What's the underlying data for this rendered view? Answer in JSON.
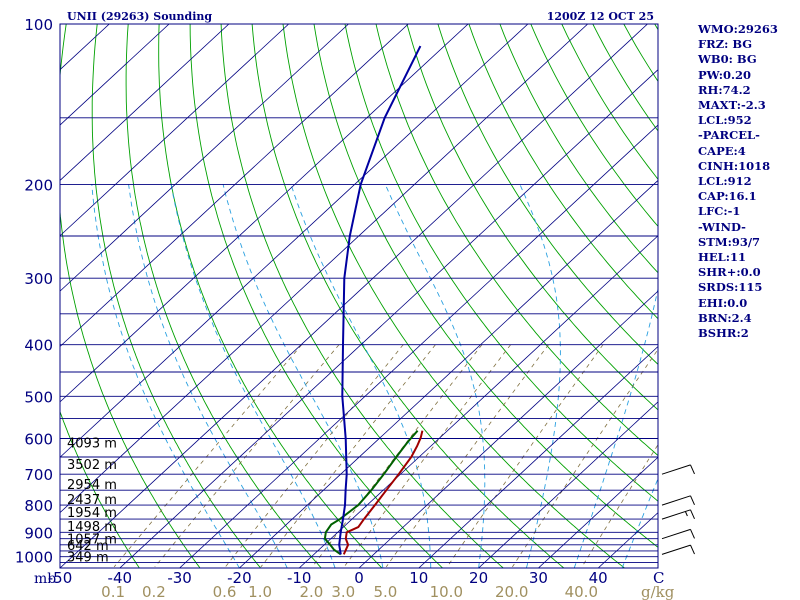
{
  "colors": {
    "border": "#000080",
    "isobar": "#000080",
    "isotherm": "#000080",
    "dry_adiabat": "#00A000",
    "moist_adiabat": "#2AA0E0",
    "mixing_ratio": "#807040",
    "temperature": "#A00000",
    "dewpoint": "#006000",
    "virtual_parcel": "#0000A0",
    "wind": "#000000",
    "label": "#000080",
    "mixing_label": "#A09060",
    "station": "#000080"
  },
  "header": {
    "station": "UNII (29263) Sounding",
    "time": "1200Z 12 OCT 25"
  },
  "side_panel": [
    "WMO:29263",
    "FRZ: BG",
    "WB0: BG",
    "PW:0.20",
    "RH:74.2",
    "MAXT:-2.3",
    "LCL:952",
    "-PARCEL-",
    "CAPE:4",
    "CINH:1018",
    "LCL:912",
    "CAP:16.1",
    "LFC:-1",
    "-WIND-",
    "STM:93/7",
    "HEL:11",
    "SHR+:0.0",
    "SRDS:115",
    "EHI:0.0",
    "BRN:2.4",
    "BSHR:2"
  ],
  "chart_data": {
    "type": "line",
    "title": "UNII (29263) Sounding",
    "subtitle": "1200Z 12 OCT 25",
    "xlabel": "",
    "ylabel": "mb",
    "xunit": "C",
    "mixing_unit": "g/kg",
    "xlim": [
      -50,
      50
    ],
    "ylim": [
      1050,
      100
    ],
    "pressure_labels": [
      100,
      200,
      300,
      400,
      500,
      600,
      700,
      800,
      900,
      1000
    ],
    "isobars": [
      100,
      150,
      200,
      250,
      300,
      350,
      400,
      450,
      500,
      550,
      600,
      650,
      700,
      750,
      800,
      850,
      900,
      925,
      950,
      975,
      1000,
      1025
    ],
    "temp_labels": [
      "-50",
      "-40",
      "-30",
      "-20",
      "-10",
      "0",
      "10",
      "20",
      "30",
      "40"
    ],
    "temp_label_values": [
      -50,
      -40,
      -30,
      -20,
      -10,
      0,
      10,
      20,
      30,
      40
    ],
    "mixing_labels": [
      "0.1",
      "0.2",
      "0.6",
      "1.0",
      "2.0",
      "3.0",
      "5.0",
      "10.0",
      "20.0",
      "40.0"
    ],
    "mixing_values": [
      0.1,
      0.2,
      0.6,
      1.0,
      2.0,
      3.0,
      5.0,
      10.0,
      20.0,
      40.0
    ],
    "height_labels": [
      {
        "p": 1000,
        "text": "349 m"
      },
      {
        "p": 950,
        "text": "642 m"
      },
      {
        "p": 925,
        "text": "1057 m"
      },
      {
        "p": 875,
        "text": "1498 m"
      },
      {
        "p": 825,
        "text": "1954 m"
      },
      {
        "p": 780,
        "text": "2437 m"
      },
      {
        "p": 730,
        "text": "2954 m"
      },
      {
        "p": 670,
        "text": "3502 m"
      },
      {
        "p": 610,
        "text": "4093 m"
      }
    ],
    "series": [
      {
        "name": "temperature",
        "points": [
          [
            990,
            -5.0
          ],
          [
            970,
            -5.5
          ],
          [
            950,
            -6.0
          ],
          [
            925,
            -7.5
          ],
          [
            900,
            -8.5
          ],
          [
            880,
            -7.5
          ],
          [
            850,
            -8.0
          ],
          [
            800,
            -8.7
          ],
          [
            750,
            -9.5
          ],
          [
            700,
            -10.3
          ],
          [
            650,
            -11.3
          ],
          [
            620,
            -12.3
          ],
          [
            598,
            -13.2
          ],
          [
            580,
            -14.2
          ]
        ]
      },
      {
        "name": "dewpoint",
        "points": [
          [
            990,
            -5.5
          ],
          [
            970,
            -7.5
          ],
          [
            950,
            -9.0
          ],
          [
            925,
            -11.0
          ],
          [
            900,
            -12.0
          ],
          [
            870,
            -12.5
          ],
          [
            850,
            -12.0
          ],
          [
            800,
            -11.5
          ],
          [
            750,
            -12.0
          ],
          [
            700,
            -12.8
          ],
          [
            650,
            -13.8
          ],
          [
            610,
            -14.6
          ],
          [
            580,
            -15.0
          ]
        ]
      },
      {
        "name": "virtual_parcel",
        "points": [
          [
            990,
            -5.5
          ],
          [
            950,
            -7.5
          ],
          [
            900,
            -9.5
          ],
          [
            850,
            -11.5
          ],
          [
            800,
            -13.7
          ],
          [
            750,
            -16.3
          ],
          [
            700,
            -19.0
          ],
          [
            600,
            -25.6
          ],
          [
            500,
            -33.8
          ],
          [
            400,
            -43.0
          ],
          [
            300,
            -54.8
          ],
          [
            250,
            -61.5
          ],
          [
            200,
            -69.0
          ],
          [
            150,
            -77.0
          ],
          [
            110,
            -84.0
          ]
        ]
      }
    ],
    "wind_barbs": [
      {
        "p": 990,
        "dir": 250,
        "spd": 10
      },
      {
        "p": 925,
        "dir": 250,
        "spd": 10
      },
      {
        "p": 850,
        "dir": 250,
        "spd": 15
      },
      {
        "p": 800,
        "dir": 250,
        "spd": 10
      },
      {
        "p": 700,
        "dir": 240,
        "spd": 10
      }
    ]
  }
}
